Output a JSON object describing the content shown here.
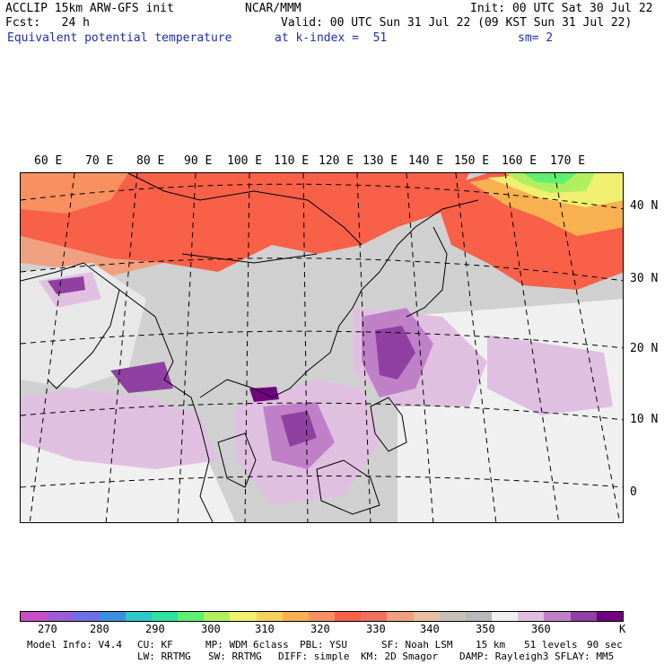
{
  "header": {
    "left1": "ACCLIP 15km ARW-GFS init",
    "center1": "NCAR/MMM",
    "right1": "Init: 00 UTC Sat 30 Jul 22",
    "left2": "Fcst:   24 h",
    "right2": "Valid: 00 UTC Sun 31 Jul 22 (09 KST Sun 31 Jul 22)",
    "field": "Equivalent potential temperature",
    "level": "at k-index =  51",
    "smooth": "sm= 2"
  },
  "map": {
    "lon_labels": [
      "60 E",
      "70 E",
      "80 E",
      "90 E",
      "100 E",
      "110 E",
      "120 E",
      "130 E",
      "140 E",
      "150 E",
      "160 E",
      "170 E"
    ],
    "lat_labels": [
      "40 N",
      "30 N",
      "20 N",
      "10 N",
      "0"
    ]
  },
  "colorbar": {
    "colors": [
      "#c84fc8",
      "#9b5ed8",
      "#6f6fe8",
      "#3a8fe0",
      "#2fc8c8",
      "#2fe0a0",
      "#60f070",
      "#b0f060",
      "#f0f070",
      "#f8d060",
      "#f8b050",
      "#f89060",
      "#f86048",
      "#f07060",
      "#f0a080",
      "#e8c0a0",
      "#c8c0b8",
      "#b8b8b8",
      "#f0f0f0",
      "#e0c0e0",
      "#c080c8",
      "#9040a0",
      "#700080"
    ],
    "labels": [
      "270",
      "280",
      "290",
      "300",
      "310",
      "320",
      "330",
      "340",
      "350",
      "360"
    ],
    "unit": "K"
  },
  "footer": {
    "line1": [
      "Model Info: V4.4",
      "CU: KF",
      "MP: WDM 6class",
      "PBL: YSU",
      "SF: Noah LSM",
      "15 km",
      "51 levels",
      "90 sec"
    ],
    "line2": [
      "LW: RRTMG",
      "SW: RRTMG",
      "DIFF: simple",
      "KM: 2D Smagor",
      "DAMP: Rayleigh3",
      "SFLAY: MM5"
    ]
  }
}
